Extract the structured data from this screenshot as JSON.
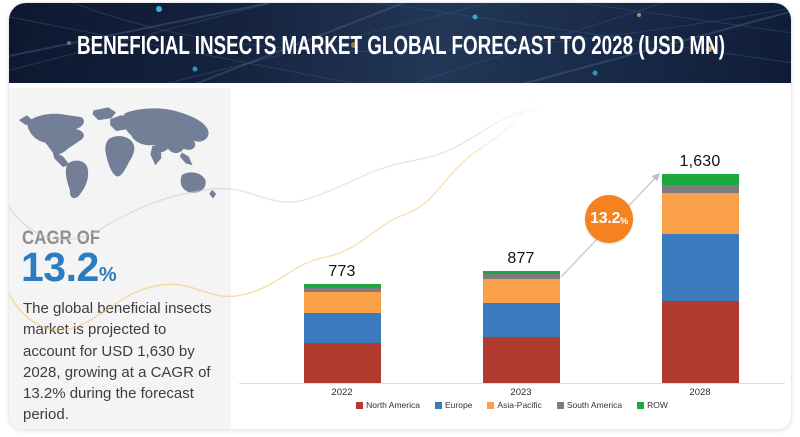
{
  "header": {
    "title": "BENEFICIAL INSECTS MARKET GLOBAL FORECAST TO 2028 (USD MN)"
  },
  "sidebar": {
    "map_icon": "world-map",
    "cagr_label": "CAGR OF",
    "cagr_value": "13.2",
    "cagr_unit": "%",
    "description": "The global beneficial insects market is projected to account for USD 1,630 by 2028, growing at a CAGR of 13.2% during the forecast period.",
    "accent_color": "#2d7cbf",
    "panel_color": "#f4f4f4"
  },
  "chart_data": {
    "type": "bar",
    "stacked": true,
    "title": "",
    "currency_unit": "USD MN",
    "categories": [
      "2022",
      "2023",
      "2028"
    ],
    "totals": [
      "773",
      "877",
      "1,630"
    ],
    "series": [
      {
        "name": "North America",
        "color": "#b13b2e",
        "values": [
          312,
          360,
          644
        ]
      },
      {
        "name": "Europe",
        "color": "#3b7abc",
        "values": [
          234,
          268,
          517
        ]
      },
      {
        "name": "Asia-Pacific",
        "color": "#faa04b",
        "values": [
          166,
          187,
          323
        ]
      },
      {
        "name": "South America",
        "color": "#7d7d7d",
        "values": [
          34,
          39,
          66
        ]
      },
      {
        "name": "ROW",
        "color": "#1ca83d",
        "values": [
          27,
          23,
          80
        ]
      }
    ],
    "annotation": {
      "label": "13.2",
      "unit": "%",
      "badge_color": "#f5821f"
    },
    "legend_position": "bottom",
    "gridlines": false,
    "axis_color": "#dcdcdc",
    "ylim": [
      0,
      1700
    ]
  }
}
